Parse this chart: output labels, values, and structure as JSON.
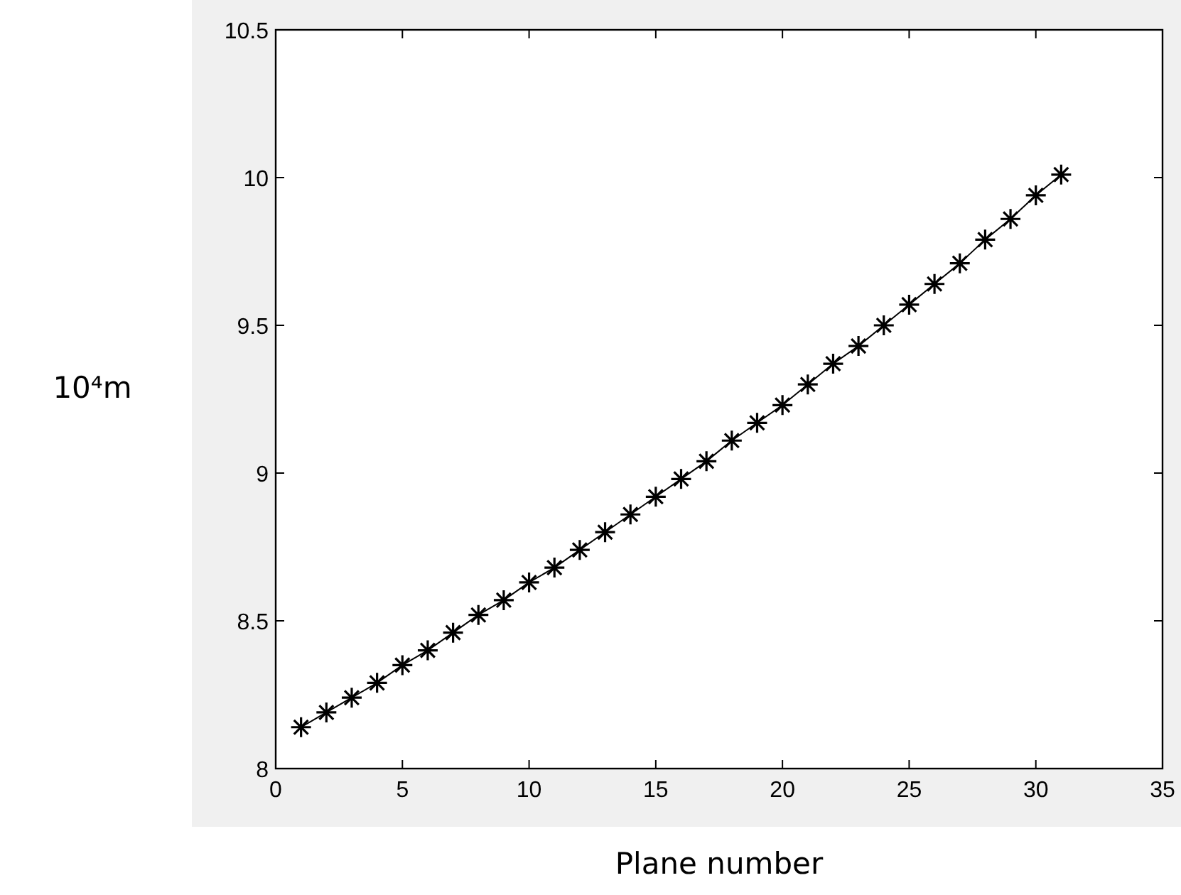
{
  "chart_data": {
    "type": "line",
    "xlabel": "Plane number",
    "ylabel": "10⁴m",
    "x": [
      1,
      2,
      3,
      4,
      5,
      6,
      7,
      8,
      9,
      10,
      11,
      12,
      13,
      14,
      15,
      16,
      17,
      18,
      19,
      20,
      21,
      22,
      23,
      24,
      25,
      26,
      27,
      28,
      29,
      30,
      31
    ],
    "series": [
      {
        "color": "#000000",
        "values": [
          8.14,
          8.19,
          8.24,
          8.29,
          8.35,
          8.4,
          8.46,
          8.52,
          8.57,
          8.63,
          8.68,
          8.74,
          8.8,
          8.86,
          8.92,
          8.98,
          9.04,
          9.11,
          9.17,
          9.23,
          9.3,
          9.37,
          9.43,
          9.5,
          9.57,
          9.64,
          9.71,
          9.79,
          9.86,
          9.94,
          10.01
        ]
      }
    ],
    "xlim": [
      0,
      35
    ],
    "xticks": [
      0,
      5,
      10,
      15,
      20,
      25,
      30,
      35
    ],
    "ylim": [
      8,
      10.5
    ],
    "yticks": [
      8,
      8.5,
      9,
      9.5,
      10,
      10.5
    ],
    "marker": "cross",
    "line_style": "solid",
    "grid": false
  }
}
